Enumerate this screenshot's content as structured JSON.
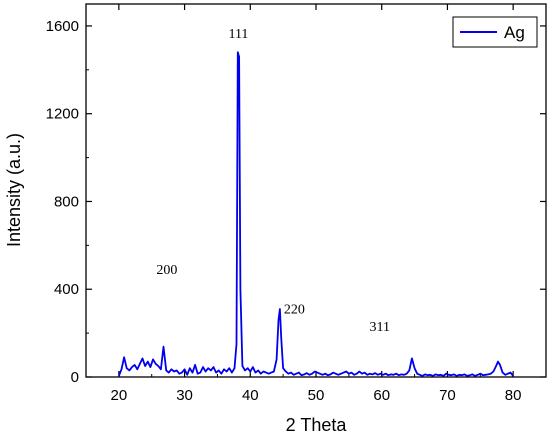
{
  "chart_data": {
    "type": "line",
    "xlabel": "2 Theta",
    "ylabel": "Intensity (a.u.)",
    "xlim": [
      15,
      85
    ],
    "ylim": [
      0,
      1700
    ],
    "xticks": [
      20,
      30,
      40,
      50,
      60,
      70,
      80
    ],
    "yticks": [
      0,
      400,
      800,
      1200,
      1600
    ],
    "grid": false,
    "legend_position": "top-right",
    "series": [
      {
        "name": "Ag",
        "color": "#0000ee",
        "points": [
          [
            20.0,
            5
          ],
          [
            20.4,
            35
          ],
          [
            20.8,
            90
          ],
          [
            21.2,
            40
          ],
          [
            21.6,
            30
          ],
          [
            22.0,
            45
          ],
          [
            22.4,
            55
          ],
          [
            22.8,
            35
          ],
          [
            23.2,
            60
          ],
          [
            23.6,
            85
          ],
          [
            24.0,
            50
          ],
          [
            24.4,
            70
          ],
          [
            24.8,
            45
          ],
          [
            25.2,
            80
          ],
          [
            25.6,
            60
          ],
          [
            26.0,
            50
          ],
          [
            26.4,
            35
          ],
          [
            26.8,
            138
          ],
          [
            27.2,
            30
          ],
          [
            27.6,
            20
          ],
          [
            28.0,
            35
          ],
          [
            28.4,
            25
          ],
          [
            28.8,
            30
          ],
          [
            29.2,
            15
          ],
          [
            29.6,
            20
          ],
          [
            30.0,
            35
          ],
          [
            30.4,
            10
          ],
          [
            30.8,
            40
          ],
          [
            31.2,
            20
          ],
          [
            31.6,
            55
          ],
          [
            32.0,
            15
          ],
          [
            32.4,
            20
          ],
          [
            32.8,
            45
          ],
          [
            33.2,
            25
          ],
          [
            33.6,
            40
          ],
          [
            34.0,
            30
          ],
          [
            34.4,
            45
          ],
          [
            34.8,
            20
          ],
          [
            35.2,
            30
          ],
          [
            35.6,
            15
          ],
          [
            36.0,
            35
          ],
          [
            36.4,
            25
          ],
          [
            36.8,
            40
          ],
          [
            37.2,
            20
          ],
          [
            37.6,
            40
          ],
          [
            37.9,
            150
          ],
          [
            38.1,
            1480
          ],
          [
            38.3,
            1460
          ],
          [
            38.5,
            400
          ],
          [
            38.8,
            50
          ],
          [
            39.2,
            30
          ],
          [
            39.6,
            40
          ],
          [
            40.0,
            25
          ],
          [
            40.4,
            45
          ],
          [
            40.8,
            20
          ],
          [
            41.2,
            30
          ],
          [
            41.6,
            15
          ],
          [
            42.0,
            25
          ],
          [
            42.4,
            20
          ],
          [
            42.8,
            15
          ],
          [
            43.2,
            20
          ],
          [
            43.6,
            25
          ],
          [
            44.0,
            80
          ],
          [
            44.3,
            260
          ],
          [
            44.5,
            310
          ],
          [
            44.7,
            180
          ],
          [
            45.0,
            40
          ],
          [
            45.4,
            25
          ],
          [
            45.8,
            15
          ],
          [
            46.2,
            20
          ],
          [
            46.6,
            10
          ],
          [
            47.0,
            15
          ],
          [
            47.4,
            20
          ],
          [
            47.8,
            8
          ],
          [
            48.2,
            12
          ],
          [
            48.6,
            18
          ],
          [
            49.0,
            10
          ],
          [
            49.4,
            15
          ],
          [
            49.8,
            25
          ],
          [
            50.2,
            20
          ],
          [
            50.6,
            15
          ],
          [
            51.0,
            10
          ],
          [
            51.4,
            15
          ],
          [
            51.8,
            8
          ],
          [
            52.2,
            12
          ],
          [
            52.6,
            20
          ],
          [
            53.0,
            15
          ],
          [
            53.4,
            10
          ],
          [
            53.8,
            15
          ],
          [
            54.2,
            20
          ],
          [
            54.6,
            25
          ],
          [
            55.0,
            15
          ],
          [
            55.4,
            20
          ],
          [
            55.8,
            10
          ],
          [
            56.2,
            15
          ],
          [
            56.6,
            25
          ],
          [
            57.0,
            15
          ],
          [
            57.4,
            20
          ],
          [
            57.8,
            10
          ],
          [
            58.2,
            15
          ],
          [
            58.6,
            12
          ],
          [
            59.0,
            18
          ],
          [
            59.4,
            10
          ],
          [
            59.8,
            15
          ],
          [
            60.2,
            10
          ],
          [
            60.6,
            15
          ],
          [
            61.0,
            8
          ],
          [
            61.4,
            12
          ],
          [
            61.8,
            10
          ],
          [
            62.2,
            15
          ],
          [
            62.6,
            8
          ],
          [
            63.0,
            12
          ],
          [
            63.4,
            10
          ],
          [
            63.8,
            15
          ],
          [
            64.2,
            30
          ],
          [
            64.6,
            85
          ],
          [
            65.0,
            40
          ],
          [
            65.4,
            15
          ],
          [
            65.8,
            10
          ],
          [
            66.2,
            5
          ],
          [
            66.6,
            12
          ],
          [
            67.0,
            8
          ],
          [
            67.4,
            10
          ],
          [
            67.8,
            5
          ],
          [
            68.2,
            12
          ],
          [
            68.6,
            8
          ],
          [
            69.0,
            10
          ],
          [
            69.4,
            5
          ],
          [
            69.8,
            15
          ],
          [
            70.2,
            10
          ],
          [
            70.6,
            8
          ],
          [
            71.0,
            12
          ],
          [
            71.4,
            5
          ],
          [
            71.8,
            10
          ],
          [
            72.2,
            8
          ],
          [
            72.6,
            12
          ],
          [
            73.0,
            5
          ],
          [
            73.4,
            8
          ],
          [
            73.8,
            12
          ],
          [
            74.2,
            5
          ],
          [
            74.6,
            10
          ],
          [
            75.0,
            15
          ],
          [
            75.4,
            8
          ],
          [
            75.8,
            10
          ],
          [
            76.2,
            12
          ],
          [
            76.6,
            15
          ],
          [
            77.0,
            25
          ],
          [
            77.4,
            50
          ],
          [
            77.7,
            70
          ],
          [
            78.0,
            55
          ],
          [
            78.4,
            20
          ],
          [
            78.8,
            10
          ],
          [
            79.2,
            15
          ],
          [
            79.6,
            20
          ],
          [
            80.0,
            5
          ]
        ]
      }
    ],
    "annotations": [
      {
        "text": "111",
        "x": 38.2,
        "y": 1545
      },
      {
        "text": "200",
        "x": 27.3,
        "y": 470
      },
      {
        "text": "220",
        "x": 46.7,
        "y": 290
      },
      {
        "text": "311",
        "x": 59.7,
        "y": 210
      }
    ]
  }
}
